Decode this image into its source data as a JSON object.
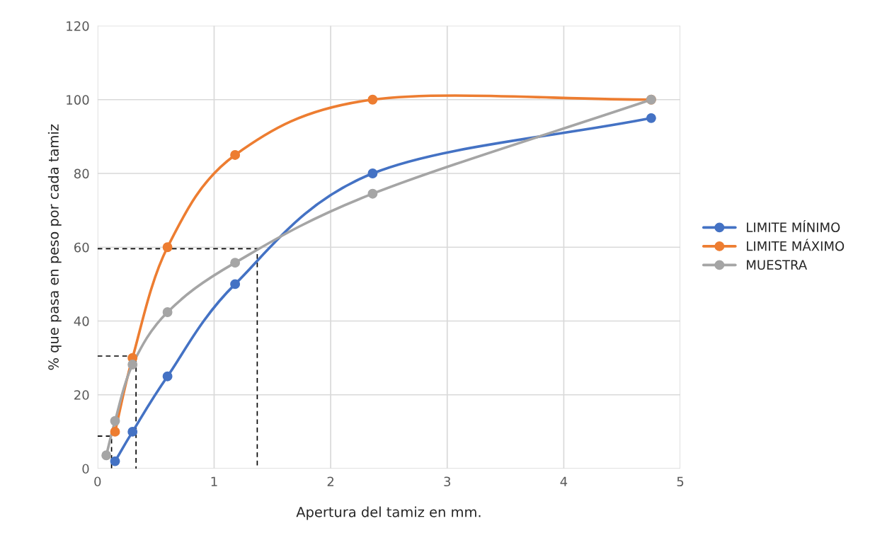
{
  "chart_data": {
    "type": "line",
    "xlabel": "Apertura del tamiz en mm.",
    "ylabel": "% que pasa en peso por cada tamiz",
    "xlim": [
      0,
      5
    ],
    "xticks": [
      0,
      1,
      2,
      3,
      4,
      5
    ],
    "ylim": [
      0,
      120
    ],
    "yticks": [
      0,
      20,
      40,
      60,
      80,
      100,
      120
    ],
    "grid": true,
    "legend": "right",
    "marker": "circle",
    "line_style": "solid",
    "series": [
      {
        "name": "LIMITE MÍNIMO",
        "color": "#4472c4",
        "x": [
          0.15,
          0.3,
          0.6,
          1.18,
          2.36,
          4.75
        ],
        "values": [
          2,
          10,
          25,
          50,
          80,
          95
        ]
      },
      {
        "name": "LIMITE MÁXIMO",
        "color": "#ed7d31",
        "x": [
          0.15,
          0.3,
          0.6,
          1.18,
          2.36,
          4.75
        ],
        "values": [
          10,
          30,
          60,
          85,
          100,
          100
        ]
      },
      {
        "name": "MUESTRA",
        "color": "#a5a5a5",
        "x": [
          0.075,
          0.15,
          0.3,
          0.6,
          1.18,
          2.36,
          4.75
        ],
        "values": [
          3.6,
          12.9,
          28.2,
          42.4,
          55.8,
          74.5,
          100
        ]
      },
      {
        "color": "#000000",
        "marker": "none",
        "line_style": "dashed",
        "x": [
          0,
          1.37,
          1.37
        ],
        "values": [
          59.6,
          59.6,
          0
        ]
      },
      {
        "color": "#000000",
        "marker": "none",
        "line_style": "dashed",
        "x": [
          0,
          0.33,
          0.33
        ],
        "values": [
          30.5,
          30.5,
          0
        ]
      },
      {
        "color": "#000000",
        "marker": "none",
        "line_style": "dashed",
        "x": [
          0,
          0.12,
          0.12
        ],
        "values": [
          8.8,
          8.8,
          0
        ]
      }
    ]
  }
}
